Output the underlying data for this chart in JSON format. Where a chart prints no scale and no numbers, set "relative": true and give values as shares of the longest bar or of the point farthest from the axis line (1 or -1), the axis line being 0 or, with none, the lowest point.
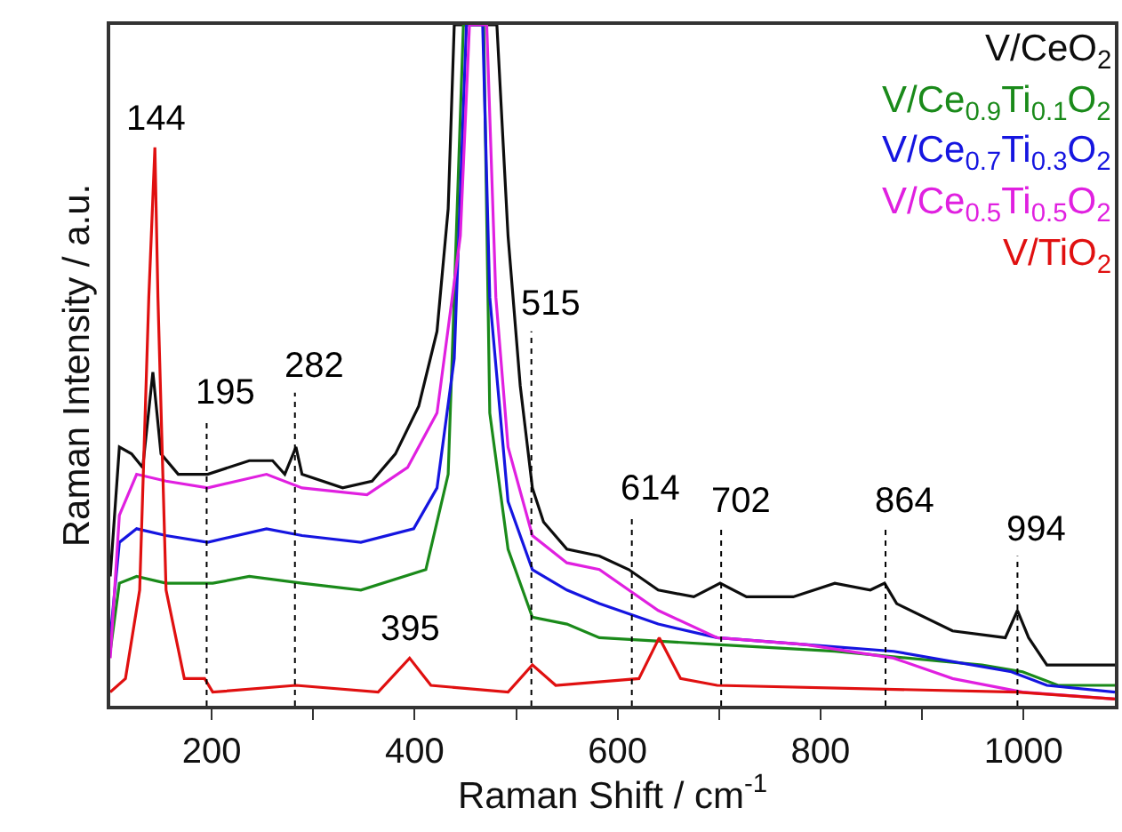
{
  "chart_data": {
    "type": "line",
    "relative": true,
    "xlabel": "Raman Shift / cm$^{-1}$",
    "ylabel": "Raman Intensity / a.u.",
    "xlim": [
      100,
      1090
    ],
    "xticks": [
      200,
      {
        "value": 300,
        "label": null
      },
      400,
      {
        "value": 500,
        "label": null
      },
      600,
      {
        "value": 700,
        "label": null
      },
      800,
      {
        "value": 900,
        "label": null
      },
      1000
    ],
    "legend": "top right",
    "series": [
      {
        "name": "V/CeO$_{2}$",
        "color": "#0d0d0d",
        "x": [
          100,
          109,
          121,
          132,
          142,
          150,
          167,
          196,
          237,
          260,
          272,
          283,
          289,
          329,
          358,
          381,
          404,
          422,
          433,
          439,
          481,
          492,
          504,
          516,
          527,
          550,
          582,
          611,
          640,
          675,
          701,
          727,
          773,
          814,
          849,
          863,
          875,
          930,
          982,
          994,
          1005,
          1023,
          1090
        ],
        "values": [
          0.19,
          0.38,
          0.37,
          0.35,
          0.49,
          0.37,
          0.34,
          0.34,
          0.36,
          0.36,
          0.34,
          0.38,
          0.34,
          0.32,
          0.33,
          0.37,
          0.44,
          0.55,
          0.73,
          1.0,
          1.0,
          0.69,
          0.47,
          0.32,
          0.27,
          0.23,
          0.22,
          0.2,
          0.17,
          0.16,
          0.18,
          0.16,
          0.16,
          0.18,
          0.17,
          0.18,
          0.15,
          0.11,
          0.1,
          0.14,
          0.1,
          0.06,
          0.06
        ]
      },
      {
        "name": "V/Ce$_{0.9}$Ti$_{0.1}$O$_{2}$",
        "color": "#1a8a1a",
        "x": [
          100,
          109,
          126,
          155,
          201,
          237,
          289,
          347,
          411,
          433,
          448,
          468,
          474,
          492,
          516,
          550,
          582,
          698,
          814,
          959,
          999,
          1034,
          1090
        ],
        "values": [
          0.08,
          0.18,
          0.19,
          0.18,
          0.18,
          0.19,
          0.18,
          0.17,
          0.2,
          0.34,
          1.0,
          1.0,
          0.43,
          0.23,
          0.13,
          0.12,
          0.1,
          0.09,
          0.08,
          0.06,
          0.05,
          0.03,
          0.03
        ]
      },
      {
        "name": "V/Ce$_{0.7}$Ti$_{0.3}$O$_{2}$",
        "color": "#1515e0",
        "x": [
          100,
          109,
          126,
          155,
          196,
          254,
          289,
          347,
          399,
          422,
          439,
          451,
          467,
          474,
          492,
          516,
          550,
          582,
          640,
          698,
          785,
          872,
          988,
          1023,
          1090
        ],
        "values": [
          0.1,
          0.24,
          0.26,
          0.25,
          0.24,
          0.26,
          0.25,
          0.24,
          0.26,
          0.32,
          0.51,
          1.0,
          1.0,
          0.6,
          0.3,
          0.2,
          0.17,
          0.15,
          0.12,
          0.1,
          0.09,
          0.08,
          0.05,
          0.03,
          0.02
        ]
      },
      {
        "name": "V/Ce$_{0.5}$Ti$_{0.5}$O$_{2}$",
        "color": "#e020e0",
        "x": [
          100,
          109,
          126,
          155,
          196,
          254,
          289,
          353,
          393,
          422,
          445,
          454,
          471,
          480,
          492,
          516,
          550,
          582,
          640,
          698,
          785,
          872,
          930,
          999,
          1090
        ],
        "values": [
          0.07,
          0.28,
          0.34,
          0.33,
          0.32,
          0.34,
          0.32,
          0.31,
          0.35,
          0.43,
          0.69,
          1.0,
          1.0,
          0.6,
          0.38,
          0.25,
          0.21,
          0.2,
          0.14,
          0.1,
          0.09,
          0.07,
          0.04,
          0.02,
          0.01
        ]
      },
      {
        "name": "V/TiO$_{2}$",
        "color": "#e01010",
        "x": [
          100,
          115,
          129,
          138,
          144,
          147,
          155,
          173,
          193,
          201,
          283,
          364,
          395,
          416,
          492,
          516,
          539,
          621,
          641,
          662,
          698,
          994,
          1090
        ],
        "values": [
          0.02,
          0.04,
          0.17,
          0.6,
          0.82,
          0.6,
          0.17,
          0.04,
          0.04,
          0.02,
          0.03,
          0.02,
          0.07,
          0.03,
          0.02,
          0.06,
          0.03,
          0.04,
          0.1,
          0.04,
          0.03,
          0.02,
          0.01
        ]
      }
    ],
    "annotations": [
      {
        "text": "144",
        "x": 144,
        "y": 0.82
      },
      {
        "text": "395",
        "x": 395,
        "y": 0.07
      }
    ],
    "ref_lines": [
      {
        "axis": "x",
        "value": 195,
        "label": "195",
        "line_style": "dotted"
      },
      {
        "axis": "x",
        "value": 282,
        "label": "282",
        "line_style": "dotted"
      },
      {
        "axis": "x",
        "value": 515,
        "label": "515",
        "line_style": "dotted"
      },
      {
        "axis": "x",
        "value": 614,
        "label": "614",
        "line_style": "dotted"
      },
      {
        "axis": "x",
        "value": 702,
        "label": "702",
        "line_style": "dotted"
      },
      {
        "axis": "x",
        "value": 864,
        "label": "864",
        "line_style": "dotted"
      },
      {
        "axis": "x",
        "value": 994,
        "label": "994",
        "line_style": "dotted"
      }
    ]
  }
}
